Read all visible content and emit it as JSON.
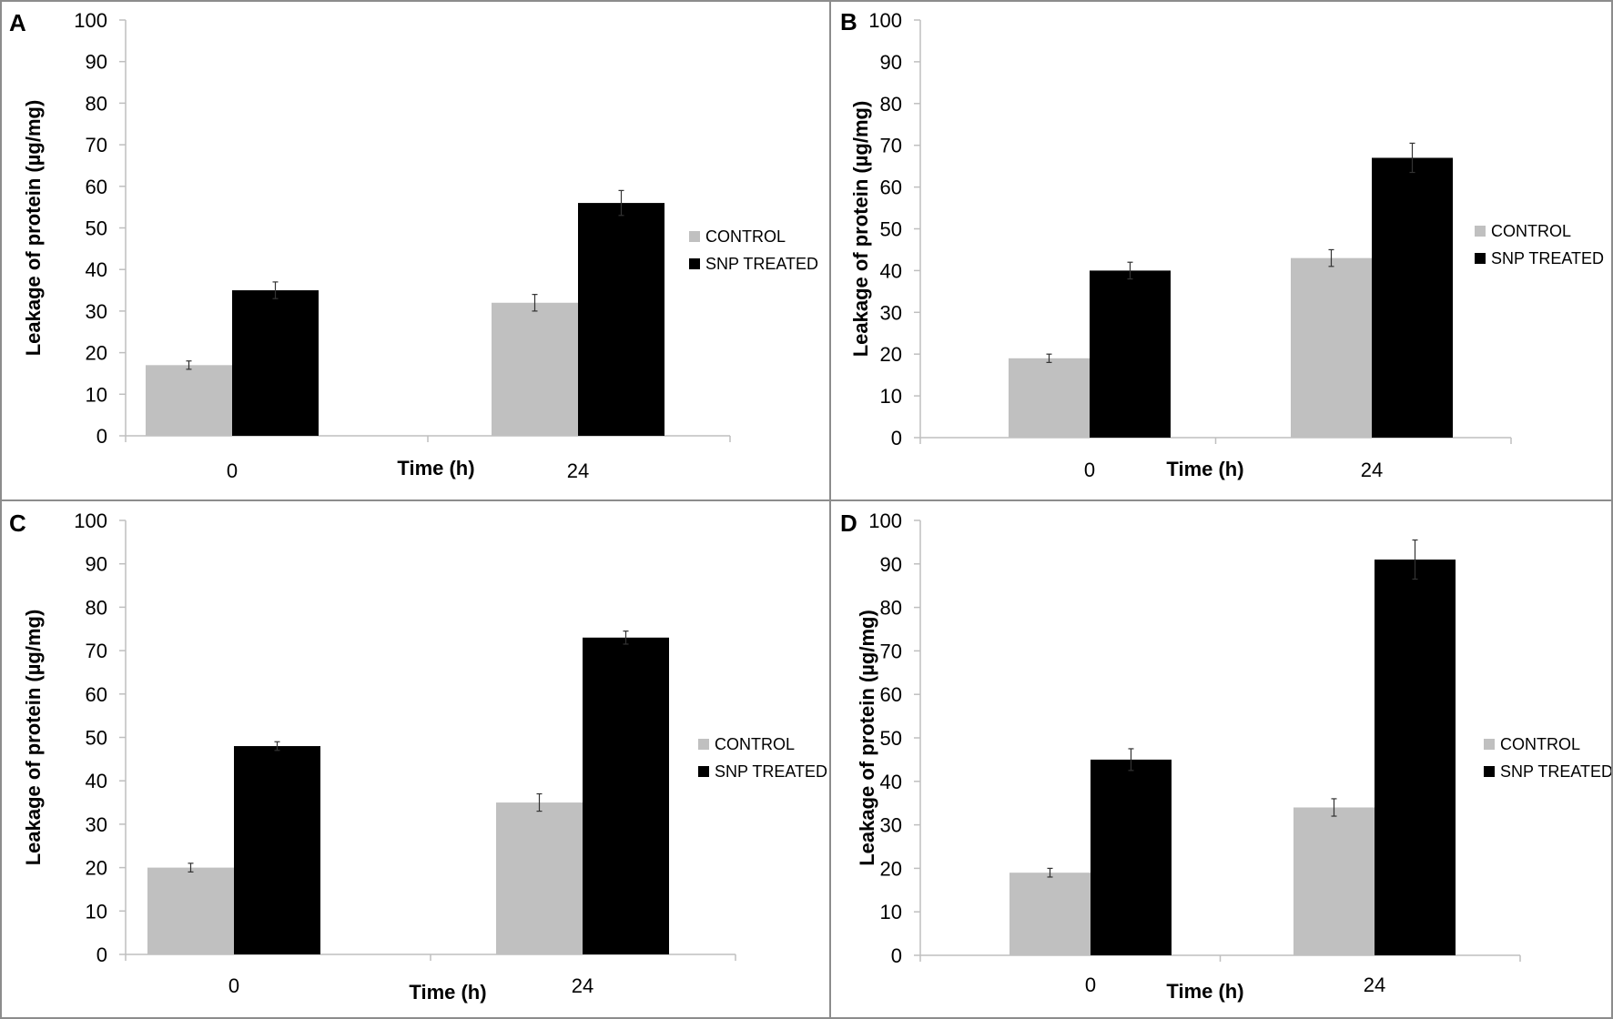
{
  "figure": {
    "colors": {
      "control": "#c0c0c0",
      "treated": "#000000",
      "axis": "#bfbfbf",
      "border": "#8c8c8c"
    }
  },
  "chart_data": [
    {
      "panel": "A",
      "type": "bar",
      "categories": [
        "0",
        "24"
      ],
      "xlabel": "Time (h)",
      "ylabel": "Leakage of protein (µg/mg)",
      "ylim": [
        0,
        100
      ],
      "yticks": [
        "0",
        "10",
        "20",
        "30",
        "40",
        "50",
        "60",
        "70",
        "80",
        "90",
        "100"
      ],
      "legend": "right",
      "series": [
        {
          "name": "CONTROL",
          "color": "#c0c0c0",
          "values": [
            17,
            32
          ],
          "errors": [
            1,
            2
          ]
        },
        {
          "name": "SNP TREATED",
          "color": "#000000",
          "values": [
            35,
            56
          ],
          "errors": [
            2,
            3
          ]
        }
      ]
    },
    {
      "panel": "B",
      "type": "bar",
      "categories": [
        "0",
        "24"
      ],
      "xlabel": "Time (h)",
      "ylabel": "Leakage of protein (µg/mg)",
      "ylim": [
        0,
        100
      ],
      "yticks": [
        "0",
        "10",
        "20",
        "30",
        "40",
        "50",
        "60",
        "70",
        "80",
        "90",
        "100"
      ],
      "legend": "right",
      "series": [
        {
          "name": "CONTROL",
          "color": "#c0c0c0",
          "values": [
            19,
            43
          ],
          "errors": [
            1,
            2
          ]
        },
        {
          "name": "SNP TREATED",
          "color": "#000000",
          "values": [
            40,
            67
          ],
          "errors": [
            2,
            3.5
          ]
        }
      ]
    },
    {
      "panel": "C",
      "type": "bar",
      "categories": [
        "0",
        "24"
      ],
      "xlabel": "Time (h)",
      "ylabel": "Leakage of protein (µg/mg)",
      "ylim": [
        0,
        100
      ],
      "yticks": [
        "0",
        "10",
        "20",
        "30",
        "40",
        "50",
        "60",
        "70",
        "80",
        "90",
        "100"
      ],
      "legend": "right",
      "series": [
        {
          "name": "CONTROL",
          "color": "#c0c0c0",
          "values": [
            20,
            35
          ],
          "errors": [
            1,
            2
          ]
        },
        {
          "name": "SNP TREATED",
          "color": "#000000",
          "values": [
            48,
            73
          ],
          "errors": [
            1,
            1.5
          ]
        }
      ]
    },
    {
      "panel": "D",
      "type": "bar",
      "categories": [
        "0",
        "24"
      ],
      "xlabel": "Time (h)",
      "ylabel": "Leakage of protein (µg/mg)",
      "ylim": [
        0,
        100
      ],
      "yticks": [
        "0",
        "10",
        "20",
        "30",
        "40",
        "50",
        "60",
        "70",
        "80",
        "90",
        "100"
      ],
      "legend": "right",
      "series": [
        {
          "name": "CONTROL",
          "color": "#c0c0c0",
          "values": [
            19,
            34
          ],
          "errors": [
            1,
            2
          ]
        },
        {
          "name": "SNP TREATED",
          "color": "#000000",
          "values": [
            45,
            91
          ],
          "errors": [
            2.5,
            4.5
          ]
        }
      ]
    }
  ]
}
